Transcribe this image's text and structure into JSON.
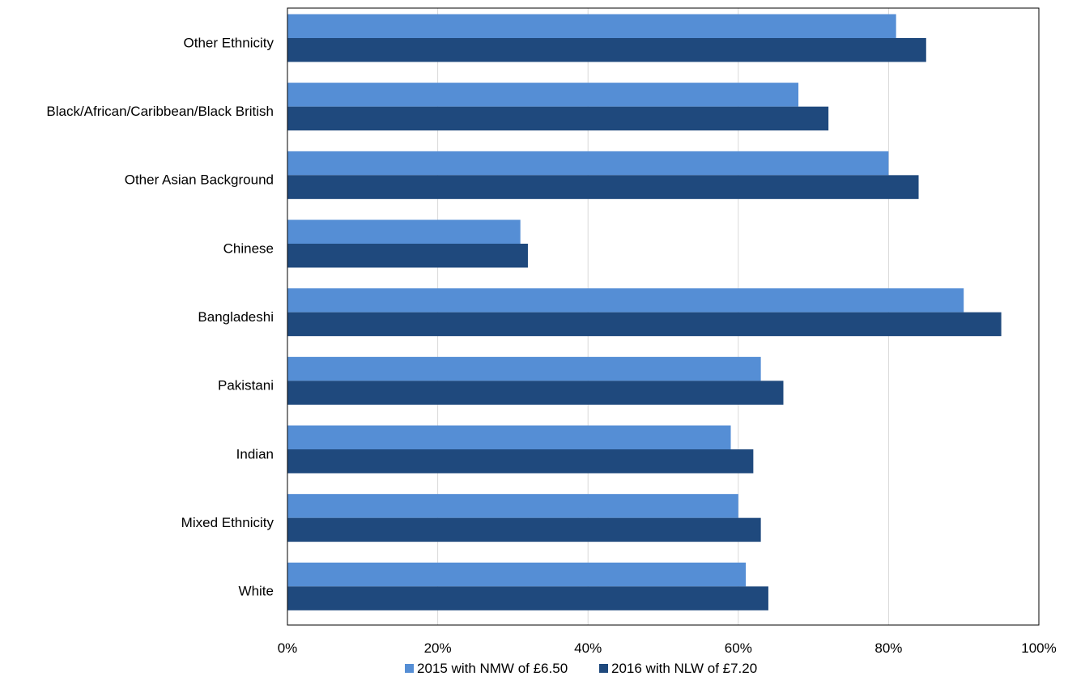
{
  "chart_data": {
    "type": "bar",
    "orientation": "horizontal",
    "categories": [
      "Other Ethnicity",
      "Black/African/Caribbean/Black British",
      "Other Asian Background",
      "Chinese",
      "Bangladeshi",
      "Pakistani",
      "Indian",
      "Mixed Ethnicity",
      "White"
    ],
    "series": [
      {
        "name": "2015 with NMW of £6.50",
        "color": "#558ED5",
        "values": [
          81,
          68,
          80,
          31,
          90,
          63,
          59,
          60,
          61
        ]
      },
      {
        "name": "2016 with NLW of £7.20",
        "color": "#1F497D",
        "values": [
          85,
          72,
          84,
          32,
          95,
          66,
          62,
          63,
          64
        ]
      }
    ],
    "x_ticks": [
      "0%",
      "20%",
      "40%",
      "60%",
      "80%",
      "100%"
    ],
    "xlim": [
      0,
      100
    ],
    "unit": "%",
    "grid": true,
    "legend_position": "bottom",
    "title": "",
    "xlabel": "",
    "ylabel": ""
  }
}
